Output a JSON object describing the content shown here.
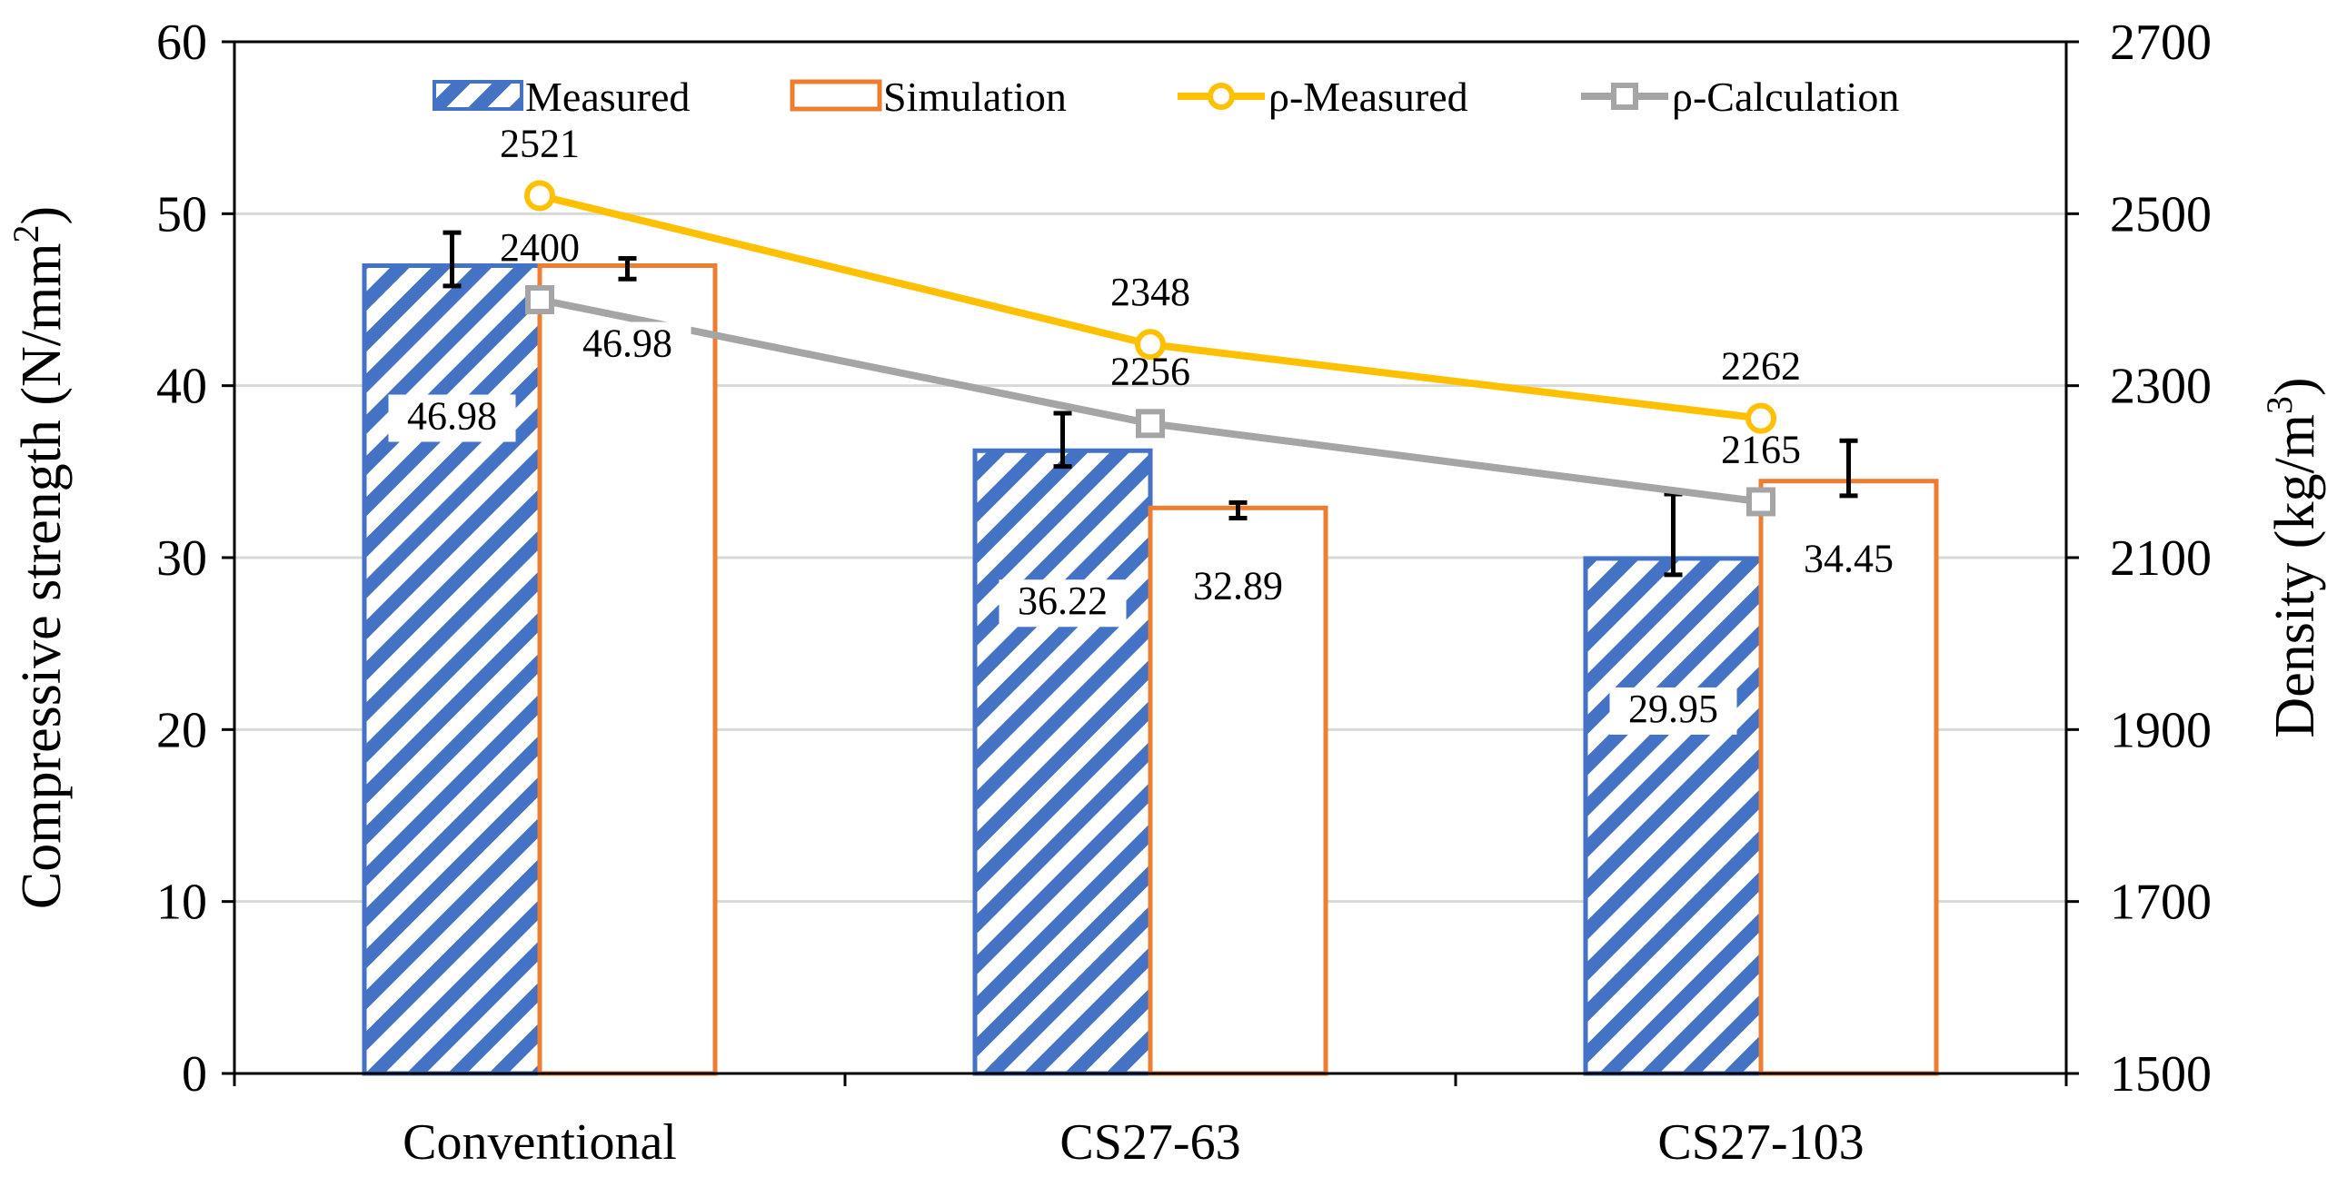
{
  "chart_data": {
    "type": "bar",
    "categories": [
      "Conventional",
      "CS27-63",
      "CS27-103"
    ],
    "series": [
      {
        "name": "Measured",
        "axis": "left",
        "style": "hatched-bar",
        "color": "#4472C4",
        "values": [
          46.98,
          36.22,
          29.95
        ],
        "value_labels": [
          "46.98",
          "36.22",
          "29.95"
        ],
        "error_low": [
          45.8,
          35.3,
          29.0
        ],
        "error_high": [
          48.9,
          38.4,
          33.7
        ]
      },
      {
        "name": "Simulation",
        "axis": "left",
        "style": "outline-bar",
        "color": "#ED7D31",
        "values": [
          46.98,
          32.89,
          34.45
        ],
        "value_labels": [
          "46.98",
          "32.89",
          "34.45"
        ],
        "error_low": [
          46.2,
          32.3,
          33.6
        ],
        "error_high": [
          47.4,
          33.2,
          36.8
        ]
      },
      {
        "name": "ρ-Measured",
        "axis": "right",
        "style": "line-circle",
        "color": "#FFC000",
        "values": [
          2521,
          2348,
          2262
        ],
        "value_labels": [
          "2521",
          "2348",
          "2262"
        ]
      },
      {
        "name": "ρ-Calculation",
        "axis": "right",
        "style": "line-square",
        "color": "#A5A5A5",
        "values": [
          2400,
          2256,
          2165
        ],
        "value_labels": [
          "2400",
          "2256",
          "2165"
        ]
      }
    ],
    "left_axis": {
      "label": "Compressive strength (N/mm",
      "label_sup": "2",
      "label_end": ")",
      "range": [
        0,
        60
      ],
      "ticks": [
        "0",
        "10",
        "20",
        "30",
        "40",
        "50",
        "60"
      ]
    },
    "right_axis": {
      "label": "Density (kg/m",
      "label_sup": "3",
      "label_end": ")",
      "range": [
        1500,
        2700
      ],
      "ticks": [
        "1500",
        "1700",
        "1900",
        "2100",
        "2300",
        "2500",
        "2700"
      ]
    },
    "grid": true,
    "legend_position": "top"
  }
}
